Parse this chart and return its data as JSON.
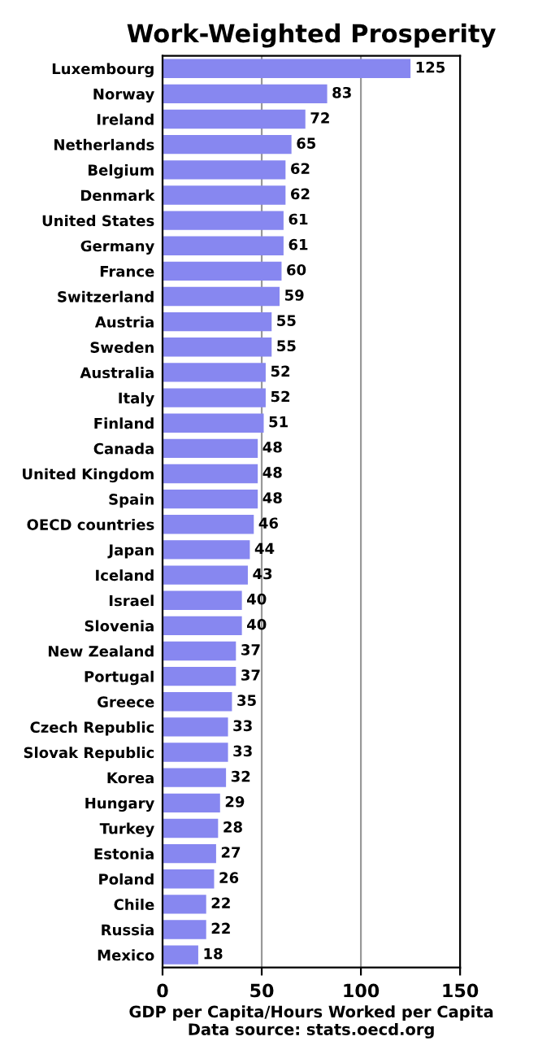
{
  "chart_data": {
    "type": "bar",
    "orientation": "horizontal",
    "title": "Work-Weighted Prosperity",
    "xlabel": "GDP per Capita/Hours Worked per Capita",
    "annotations": [
      "Data source: stats.oecd.org"
    ],
    "categories": [
      "Luxembourg",
      "Norway",
      "Ireland",
      "Netherlands",
      "Belgium",
      "Denmark",
      "United States",
      "Germany",
      "France",
      "Switzerland",
      "Austria",
      "Sweden",
      "Australia",
      "Italy",
      "Finland",
      "Canada",
      "United Kingdom",
      "Spain",
      "OECD countries",
      "Japan",
      "Iceland",
      "Israel",
      "Slovenia",
      "New Zealand",
      "Portugal",
      "Greece",
      "Czech Republic",
      "Slovak Republic",
      "Korea",
      "Hungary",
      "Turkey",
      "Estonia",
      "Poland",
      "Chile",
      "Russia",
      "Mexico"
    ],
    "values": [
      125,
      83,
      72,
      65,
      62,
      62,
      61,
      61,
      60,
      59,
      55,
      55,
      52,
      52,
      51,
      48,
      48,
      48,
      46,
      44,
      43,
      40,
      40,
      37,
      37,
      35,
      33,
      33,
      32,
      29,
      28,
      27,
      26,
      22,
      22,
      18
    ],
    "color": "#8787f0",
    "xlim": [
      0,
      150
    ],
    "xticks": [
      0,
      50,
      100,
      150
    ],
    "grid": "x",
    "data_labels": true
  }
}
